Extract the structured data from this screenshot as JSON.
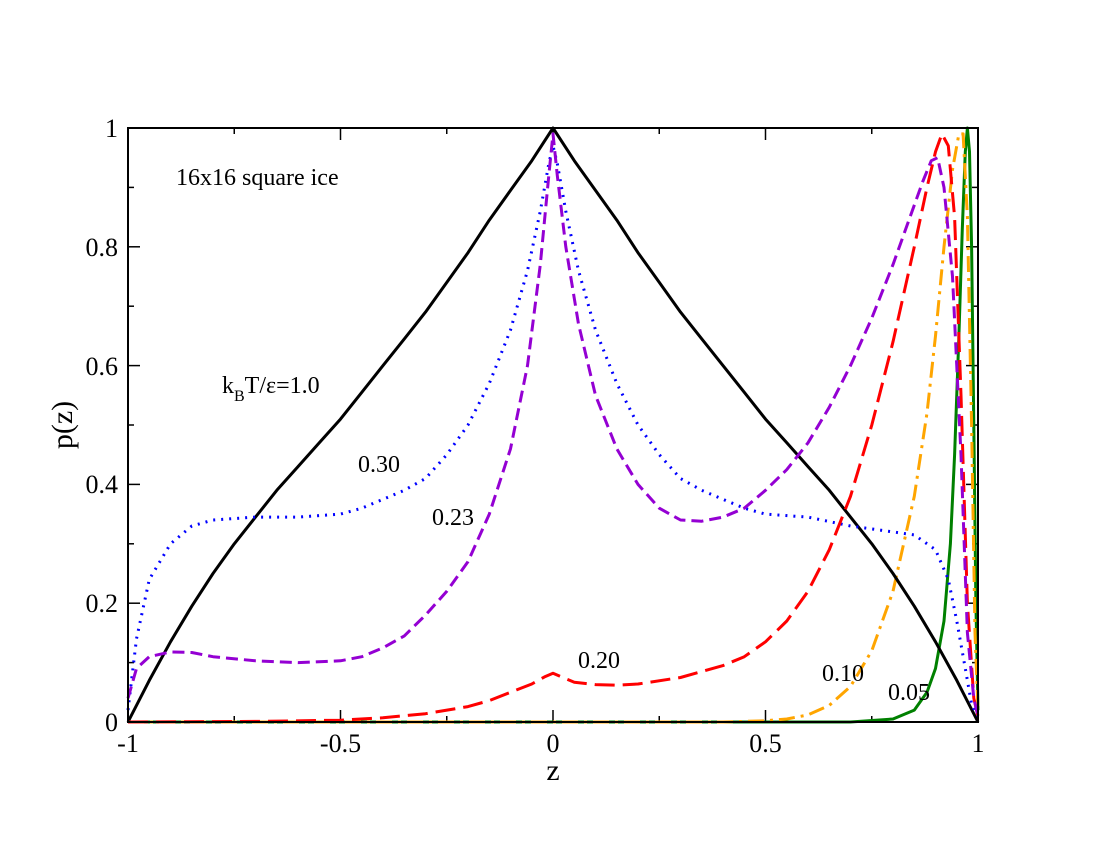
{
  "chart_data": {
    "type": "line",
    "title": "",
    "xlabel": "z",
    "ylabel": "p(z)",
    "xlim": [
      -1,
      1
    ],
    "ylim": [
      0,
      1
    ],
    "grid": false,
    "annotation_title": "16x16 square ice",
    "x_ticks": [
      "-1",
      "-0.5",
      "0",
      "0.5",
      "1"
    ],
    "y_ticks": [
      "0",
      "0.2",
      "0.4",
      "0.6",
      "0.8",
      "1"
    ],
    "temperature_label": {
      "prefix": "k",
      "sub": "B",
      "suffix": "T/ε=1.0"
    },
    "series": [
      {
        "name": "1.0",
        "label": "",
        "color": "#000000",
        "dash": "solid",
        "points": [
          [
            -1,
            0
          ],
          [
            -0.95,
            0.07
          ],
          [
            -0.9,
            0.135
          ],
          [
            -0.85,
            0.195
          ],
          [
            -0.8,
            0.25
          ],
          [
            -0.75,
            0.3
          ],
          [
            -0.7,
            0.345
          ],
          [
            -0.65,
            0.39
          ],
          [
            -0.6,
            0.43
          ],
          [
            -0.55,
            0.47
          ],
          [
            -0.5,
            0.51
          ],
          [
            -0.45,
            0.555
          ],
          [
            -0.4,
            0.6
          ],
          [
            -0.35,
            0.645
          ],
          [
            -0.3,
            0.69
          ],
          [
            -0.25,
            0.74
          ],
          [
            -0.2,
            0.79
          ],
          [
            -0.15,
            0.845
          ],
          [
            -0.1,
            0.895
          ],
          [
            -0.05,
            0.945
          ],
          [
            0,
            1
          ],
          [
            0.05,
            0.945
          ],
          [
            0.1,
            0.895
          ],
          [
            0.15,
            0.845
          ],
          [
            0.2,
            0.79
          ],
          [
            0.25,
            0.74
          ],
          [
            0.3,
            0.69
          ],
          [
            0.35,
            0.645
          ],
          [
            0.4,
            0.6
          ],
          [
            0.45,
            0.555
          ],
          [
            0.5,
            0.51
          ],
          [
            0.55,
            0.47
          ],
          [
            0.6,
            0.43
          ],
          [
            0.65,
            0.39
          ],
          [
            0.7,
            0.345
          ],
          [
            0.75,
            0.3
          ],
          [
            0.8,
            0.25
          ],
          [
            0.85,
            0.195
          ],
          [
            0.9,
            0.135
          ],
          [
            0.95,
            0.07
          ],
          [
            1,
            0
          ]
        ]
      },
      {
        "name": "0.30",
        "label": "0.30",
        "color": "#0000ff",
        "dash": "dotted",
        "points": [
          [
            -1,
            0.02
          ],
          [
            -0.98,
            0.14
          ],
          [
            -0.95,
            0.24
          ],
          [
            -0.9,
            0.3
          ],
          [
            -0.85,
            0.33
          ],
          [
            -0.8,
            0.34
          ],
          [
            -0.7,
            0.345
          ],
          [
            -0.6,
            0.345
          ],
          [
            -0.5,
            0.35
          ],
          [
            -0.45,
            0.36
          ],
          [
            -0.4,
            0.375
          ],
          [
            -0.35,
            0.39
          ],
          [
            -0.3,
            0.41
          ],
          [
            -0.25,
            0.45
          ],
          [
            -0.2,
            0.5
          ],
          [
            -0.15,
            0.57
          ],
          [
            -0.1,
            0.66
          ],
          [
            -0.06,
            0.76
          ],
          [
            -0.03,
            0.86
          ],
          [
            -0.01,
            0.94
          ],
          [
            0,
            0.97
          ],
          [
            0.01,
            0.94
          ],
          [
            0.03,
            0.86
          ],
          [
            0.06,
            0.76
          ],
          [
            0.1,
            0.66
          ],
          [
            0.15,
            0.57
          ],
          [
            0.2,
            0.5
          ],
          [
            0.25,
            0.45
          ],
          [
            0.3,
            0.41
          ],
          [
            0.35,
            0.39
          ],
          [
            0.4,
            0.375
          ],
          [
            0.45,
            0.36
          ],
          [
            0.5,
            0.35
          ],
          [
            0.6,
            0.345
          ],
          [
            0.7,
            0.33
          ],
          [
            0.8,
            0.32
          ],
          [
            0.85,
            0.315
          ],
          [
            0.9,
            0.29
          ],
          [
            0.93,
            0.24
          ],
          [
            0.95,
            0.17
          ],
          [
            0.97,
            0.09
          ],
          [
            0.985,
            0.03
          ],
          [
            1,
            0.01
          ]
        ]
      },
      {
        "name": "0.23",
        "label": "0.23",
        "color": "#9400d3",
        "dash": "dashed",
        "points": [
          [
            -1,
            0.04
          ],
          [
            -0.98,
            0.09
          ],
          [
            -0.95,
            0.11
          ],
          [
            -0.9,
            0.118
          ],
          [
            -0.85,
            0.117
          ],
          [
            -0.8,
            0.11
          ],
          [
            -0.7,
            0.103
          ],
          [
            -0.6,
            0.1
          ],
          [
            -0.5,
            0.103
          ],
          [
            -0.45,
            0.11
          ],
          [
            -0.4,
            0.125
          ],
          [
            -0.35,
            0.145
          ],
          [
            -0.3,
            0.18
          ],
          [
            -0.25,
            0.22
          ],
          [
            -0.2,
            0.27
          ],
          [
            -0.15,
            0.35
          ],
          [
            -0.1,
            0.46
          ],
          [
            -0.06,
            0.6
          ],
          [
            -0.03,
            0.77
          ],
          [
            -0.01,
            0.92
          ],
          [
            0,
            0.99
          ],
          [
            0.01,
            0.92
          ],
          [
            0.03,
            0.8
          ],
          [
            0.06,
            0.67
          ],
          [
            0.1,
            0.55
          ],
          [
            0.15,
            0.46
          ],
          [
            0.2,
            0.4
          ],
          [
            0.25,
            0.36
          ],
          [
            0.3,
            0.34
          ],
          [
            0.35,
            0.338
          ],
          [
            0.4,
            0.345
          ],
          [
            0.45,
            0.36
          ],
          [
            0.5,
            0.39
          ],
          [
            0.55,
            0.425
          ],
          [
            0.6,
            0.47
          ],
          [
            0.65,
            0.53
          ],
          [
            0.7,
            0.6
          ],
          [
            0.75,
            0.68
          ],
          [
            0.8,
            0.77
          ],
          [
            0.84,
            0.85
          ],
          [
            0.87,
            0.91
          ],
          [
            0.89,
            0.945
          ],
          [
            0.905,
            0.95
          ],
          [
            0.92,
            0.9
          ],
          [
            0.94,
            0.75
          ],
          [
            0.96,
            0.45
          ],
          [
            0.975,
            0.15
          ],
          [
            0.99,
            0.04
          ],
          [
            1,
            0.01
          ]
        ]
      },
      {
        "name": "0.20",
        "label": "0.20",
        "color": "#ff0000",
        "dash": "longdash",
        "points": [
          [
            -1,
            0
          ],
          [
            -0.7,
            0.001
          ],
          [
            -0.5,
            0.003
          ],
          [
            -0.4,
            0.007
          ],
          [
            -0.3,
            0.014
          ],
          [
            -0.2,
            0.026
          ],
          [
            -0.15,
            0.036
          ],
          [
            -0.1,
            0.05
          ],
          [
            -0.05,
            0.064
          ],
          [
            -0.02,
            0.076
          ],
          [
            0,
            0.082
          ],
          [
            0.02,
            0.076
          ],
          [
            0.05,
            0.067
          ],
          [
            0.1,
            0.063
          ],
          [
            0.15,
            0.062
          ],
          [
            0.2,
            0.064
          ],
          [
            0.3,
            0.075
          ],
          [
            0.4,
            0.095
          ],
          [
            0.45,
            0.11
          ],
          [
            0.5,
            0.135
          ],
          [
            0.55,
            0.17
          ],
          [
            0.6,
            0.22
          ],
          [
            0.65,
            0.29
          ],
          [
            0.7,
            0.38
          ],
          [
            0.75,
            0.5
          ],
          [
            0.8,
            0.64
          ],
          [
            0.85,
            0.8
          ],
          [
            0.88,
            0.9
          ],
          [
            0.9,
            0.96
          ],
          [
            0.915,
            0.99
          ],
          [
            0.93,
            0.97
          ],
          [
            0.945,
            0.85
          ],
          [
            0.96,
            0.55
          ],
          [
            0.975,
            0.2
          ],
          [
            0.99,
            0.04
          ],
          [
            1,
            0.01
          ]
        ]
      },
      {
        "name": "0.10",
        "label": "0.10",
        "color": "#ffa500",
        "dash": "dashdot",
        "points": [
          [
            -1,
            0
          ],
          [
            0.4,
            0
          ],
          [
            0.5,
            0.002
          ],
          [
            0.55,
            0.005
          ],
          [
            0.6,
            0.012
          ],
          [
            0.65,
            0.028
          ],
          [
            0.7,
            0.06
          ],
          [
            0.75,
            0.12
          ],
          [
            0.8,
            0.22
          ],
          [
            0.85,
            0.38
          ],
          [
            0.88,
            0.52
          ],
          [
            0.9,
            0.65
          ],
          [
            0.92,
            0.8
          ],
          [
            0.94,
            0.93
          ],
          [
            0.955,
            0.99
          ],
          [
            0.965,
            0.99
          ],
          [
            0.975,
            0.85
          ],
          [
            0.985,
            0.5
          ],
          [
            0.993,
            0.15
          ],
          [
            1,
            0.02
          ]
        ]
      },
      {
        "name": "0.05",
        "label": "0.05",
        "color": "#008000",
        "dash": "solid",
        "points": [
          [
            -1,
            0
          ],
          [
            0.7,
            0
          ],
          [
            0.8,
            0.005
          ],
          [
            0.85,
            0.02
          ],
          [
            0.88,
            0.05
          ],
          [
            0.9,
            0.09
          ],
          [
            0.92,
            0.17
          ],
          [
            0.935,
            0.3
          ],
          [
            0.945,
            0.45
          ],
          [
            0.955,
            0.65
          ],
          [
            0.963,
            0.83
          ],
          [
            0.97,
            0.96
          ],
          [
            0.975,
            1
          ],
          [
            0.98,
            0.96
          ],
          [
            0.985,
            0.8
          ],
          [
            0.99,
            0.5
          ],
          [
            0.995,
            0.2
          ],
          [
            1,
            0.02
          ]
        ]
      }
    ]
  }
}
